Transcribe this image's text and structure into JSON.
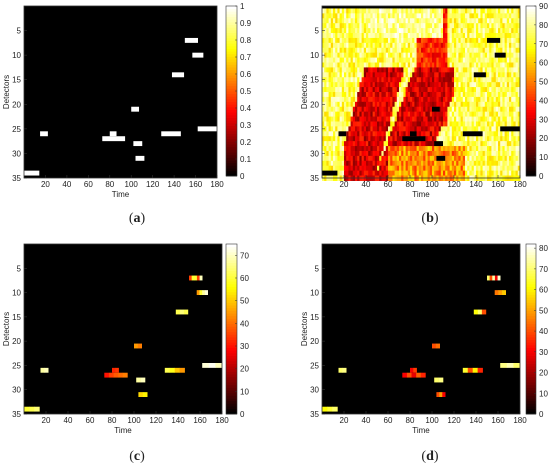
{
  "panels": [
    {
      "label": "(a)",
      "label_letter": "a",
      "xlabel": "Time",
      "ylabel": "Detectors",
      "colorbar": {
        "min": 0,
        "max": 1,
        "ticks": [
          0,
          0.1,
          0.2,
          0.3,
          0.4,
          0.5,
          0.6,
          0.7,
          0.8,
          0.9,
          1
        ]
      },
      "colormap": "hot"
    },
    {
      "label": "(b)",
      "label_letter": "b",
      "xlabel": "Time",
      "ylabel": "Detectors",
      "colorbar": {
        "min": 0,
        "max": 90,
        "ticks": [
          0,
          10,
          20,
          30,
          40,
          50,
          60,
          70,
          80,
          90
        ]
      },
      "colormap": "hot"
    },
    {
      "label": "(c)",
      "label_letter": "c",
      "xlabel": "Time",
      "ylabel": "Detectors",
      "colorbar": {
        "min": 0,
        "max": 75,
        "ticks": [
          0,
          10,
          20,
          30,
          40,
          50,
          60,
          70
        ]
      },
      "colormap": "hot"
    },
    {
      "label": "(d)",
      "label_letter": "d",
      "xlabel": "Time",
      "ylabel": "Detectors",
      "colorbar": {
        "min": 0,
        "max": 82,
        "ticks": [
          0,
          10,
          20,
          30,
          40,
          50,
          60,
          70,
          80
        ]
      },
      "colormap": "hot"
    }
  ],
  "chart_data": [
    {
      "type": "heatmap",
      "panel": "a",
      "xlabel": "Time",
      "ylabel": "Detectors",
      "xlim": [
        0,
        180
      ],
      "ylim": [
        1,
        35
      ],
      "xticks": [
        20,
        40,
        60,
        80,
        100,
        120,
        140,
        160,
        180
      ],
      "yticks": [
        5,
        10,
        15,
        20,
        25,
        30,
        35
      ],
      "background": 0,
      "segments": [
        {
          "detector": 7,
          "t0": 150,
          "t1": 162,
          "value": 1
        },
        {
          "detector": 10,
          "t0": 157,
          "t1": 167,
          "value": 1
        },
        {
          "detector": 14,
          "t0": 138,
          "t1": 149,
          "value": 1
        },
        {
          "detector": 21,
          "t0": 100,
          "t1": 107,
          "value": 1
        },
        {
          "detector": 25,
          "t0": 162,
          "t1": 180,
          "value": 1
        },
        {
          "detector": 26,
          "t0": 15,
          "t1": 22,
          "value": 1
        },
        {
          "detector": 26,
          "t0": 80,
          "t1": 86,
          "value": 1
        },
        {
          "detector": 26,
          "t0": 128,
          "t1": 146,
          "value": 1
        },
        {
          "detector": 27,
          "t0": 73,
          "t1": 94,
          "value": 1
        },
        {
          "detector": 28,
          "t0": 102,
          "t1": 110,
          "value": 1
        },
        {
          "detector": 31,
          "t0": 104,
          "t1": 112,
          "value": 1
        },
        {
          "detector": 34,
          "t0": 0,
          "t1": 14,
          "value": 1
        }
      ]
    },
    {
      "type": "heatmap",
      "panel": "b",
      "xlabel": "Time",
      "ylabel": "Detectors",
      "xlim": [
        0,
        180
      ],
      "ylim": [
        1,
        35
      ],
      "xticks": [
        20,
        40,
        60,
        80,
        100,
        120,
        140,
        160,
        180
      ],
      "yticks": [
        5,
        10,
        15,
        20,
        25,
        30,
        35
      ],
      "background": "dense speed field, mostly 50-90 with low-speed (20-40) congestion waves around t=25-115",
      "missing_value": 0,
      "missing_segments": [
        {
          "detector": 7,
          "t0": 150,
          "t1": 162
        },
        {
          "detector": 10,
          "t0": 157,
          "t1": 167
        },
        {
          "detector": 14,
          "t0": 138,
          "t1": 149
        },
        {
          "detector": 21,
          "t0": 100,
          "t1": 107
        },
        {
          "detector": 25,
          "t0": 162,
          "t1": 180
        },
        {
          "detector": 26,
          "t0": 15,
          "t1": 22
        },
        {
          "detector": 26,
          "t0": 80,
          "t1": 86
        },
        {
          "detector": 26,
          "t0": 128,
          "t1": 146
        },
        {
          "detector": 27,
          "t0": 73,
          "t1": 94
        },
        {
          "detector": 28,
          "t0": 102,
          "t1": 110
        },
        {
          "detector": 31,
          "t0": 104,
          "t1": 112
        },
        {
          "detector": 34,
          "t0": 0,
          "t1": 14
        }
      ]
    },
    {
      "type": "heatmap",
      "panel": "c",
      "xlabel": "Time",
      "ylabel": "Detectors",
      "xlim": [
        0,
        180
      ],
      "ylim": [
        1,
        35
      ],
      "xticks": [
        20,
        40,
        60,
        80,
        100,
        120,
        140,
        160,
        180
      ],
      "yticks": [
        5,
        10,
        15,
        20,
        25,
        30,
        35
      ],
      "background": 0,
      "segments": [
        {
          "detector": 7,
          "t0": 150,
          "t1": 162,
          "values": [
            35,
            60,
            60,
            35,
            70
          ]
        },
        {
          "detector": 10,
          "t0": 157,
          "t1": 167,
          "values": [
            45,
            60,
            68,
            72
          ]
        },
        {
          "detector": 14,
          "t0": 138,
          "t1": 149,
          "values": [
            62,
            65,
            62
          ]
        },
        {
          "detector": 21,
          "t0": 100,
          "t1": 107,
          "values": [
            45,
            42
          ]
        },
        {
          "detector": 25,
          "t0": 162,
          "t1": 180,
          "values": [
            72,
            74,
            70
          ]
        },
        {
          "detector": 26,
          "t0": 15,
          "t1": 22,
          "values": [
            68,
            70
          ]
        },
        {
          "detector": 26,
          "t0": 80,
          "t1": 86,
          "values": [
            32,
            34
          ]
        },
        {
          "detector": 26,
          "t0": 128,
          "t1": 146,
          "values": [
            62,
            58,
            50,
            45
          ]
        },
        {
          "detector": 27,
          "t0": 73,
          "t1": 94,
          "values": [
            30,
            35,
            38,
            40,
            42
          ]
        },
        {
          "detector": 28,
          "t0": 102,
          "t1": 110,
          "values": [
            68,
            70
          ]
        },
        {
          "detector": 31,
          "t0": 104,
          "t1": 112,
          "values": [
            52,
            55
          ]
        },
        {
          "detector": 34,
          "t0": 0,
          "t1": 14,
          "values": [
            60,
            62,
            65
          ]
        }
      ]
    },
    {
      "type": "heatmap",
      "panel": "d",
      "xlabel": "Time",
      "ylabel": "Detectors",
      "xlim": [
        0,
        180
      ],
      "ylim": [
        1,
        35
      ],
      "xticks": [
        20,
        40,
        60,
        80,
        100,
        120,
        140,
        160,
        180
      ],
      "yticks": [
        5,
        10,
        15,
        20,
        25,
        30,
        35
      ],
      "background": 0,
      "segments": [
        {
          "detector": 7,
          "t0": 150,
          "t1": 162,
          "values": [
            70,
            40,
            75,
            30,
            78
          ]
        },
        {
          "detector": 10,
          "t0": 157,
          "t1": 167,
          "values": [
            45,
            50,
            55
          ]
        },
        {
          "detector": 14,
          "t0": 138,
          "t1": 149,
          "values": [
            62,
            70,
            40
          ]
        },
        {
          "detector": 21,
          "t0": 100,
          "t1": 107,
          "values": [
            40,
            44
          ]
        },
        {
          "detector": 25,
          "t0": 162,
          "t1": 180,
          "values": [
            72,
            76,
            70
          ]
        },
        {
          "detector": 26,
          "t0": 15,
          "t1": 22,
          "values": [
            70,
            72
          ]
        },
        {
          "detector": 26,
          "t0": 80,
          "t1": 86,
          "values": [
            30,
            38
          ]
        },
        {
          "detector": 26,
          "t0": 128,
          "t1": 146,
          "values": [
            65,
            40,
            60,
            35
          ]
        },
        {
          "detector": 27,
          "t0": 73,
          "t1": 94,
          "values": [
            30,
            40,
            28,
            42,
            35
          ]
        },
        {
          "detector": 28,
          "t0": 102,
          "t1": 110,
          "values": [
            70,
            72
          ]
        },
        {
          "detector": 31,
          "t0": 104,
          "t1": 112,
          "values": [
            40,
            50,
            30
          ]
        },
        {
          "detector": 34,
          "t0": 0,
          "t1": 14,
          "values": [
            62,
            66,
            70
          ]
        }
      ]
    }
  ]
}
